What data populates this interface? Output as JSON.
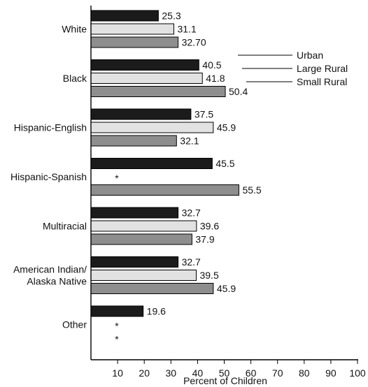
{
  "chart_data": {
    "type": "bar",
    "orientation": "horizontal",
    "categories": [
      [
        "White"
      ],
      [
        "Black"
      ],
      [
        "Hispanic-English"
      ],
      [
        "Hispanic-Spanish"
      ],
      [
        "Multiracial"
      ],
      [
        "American Indian/",
        "Alaska Native"
      ],
      [
        "Other"
      ]
    ],
    "series": [
      {
        "name": "Urban",
        "color": "#1b1b1b",
        "values": [
          25.3,
          40.5,
          37.5,
          45.5,
          32.7,
          32.7,
          19.6
        ],
        "labels": [
          "25.3",
          "40.5",
          "37.5",
          "45.5",
          "32.7",
          "32.7",
          "19.6"
        ]
      },
      {
        "name": "Large Rural",
        "color": "#e2e2e2",
        "values": [
          31.1,
          41.8,
          45.9,
          null,
          39.6,
          39.5,
          null
        ],
        "labels": [
          "31.1",
          "41.8",
          "45.9",
          "*",
          "39.6",
          "39.5",
          "*"
        ]
      },
      {
        "name": "Small Rural",
        "color": "#8e8e8e",
        "values": [
          32.7,
          50.4,
          32.1,
          55.5,
          37.9,
          45.9,
          null
        ],
        "labels": [
          "32.70",
          "50.4",
          "32.1",
          "55.5",
          "37.9",
          "45.9",
          "*"
        ]
      }
    ],
    "xlabel": "Percent of Children",
    "xlim": [
      0,
      100
    ],
    "xticks": [
      10,
      20,
      30,
      40,
      50,
      60,
      70,
      80,
      90,
      100
    ],
    "legend_position": "right, beside Black group",
    "grid": false
  }
}
